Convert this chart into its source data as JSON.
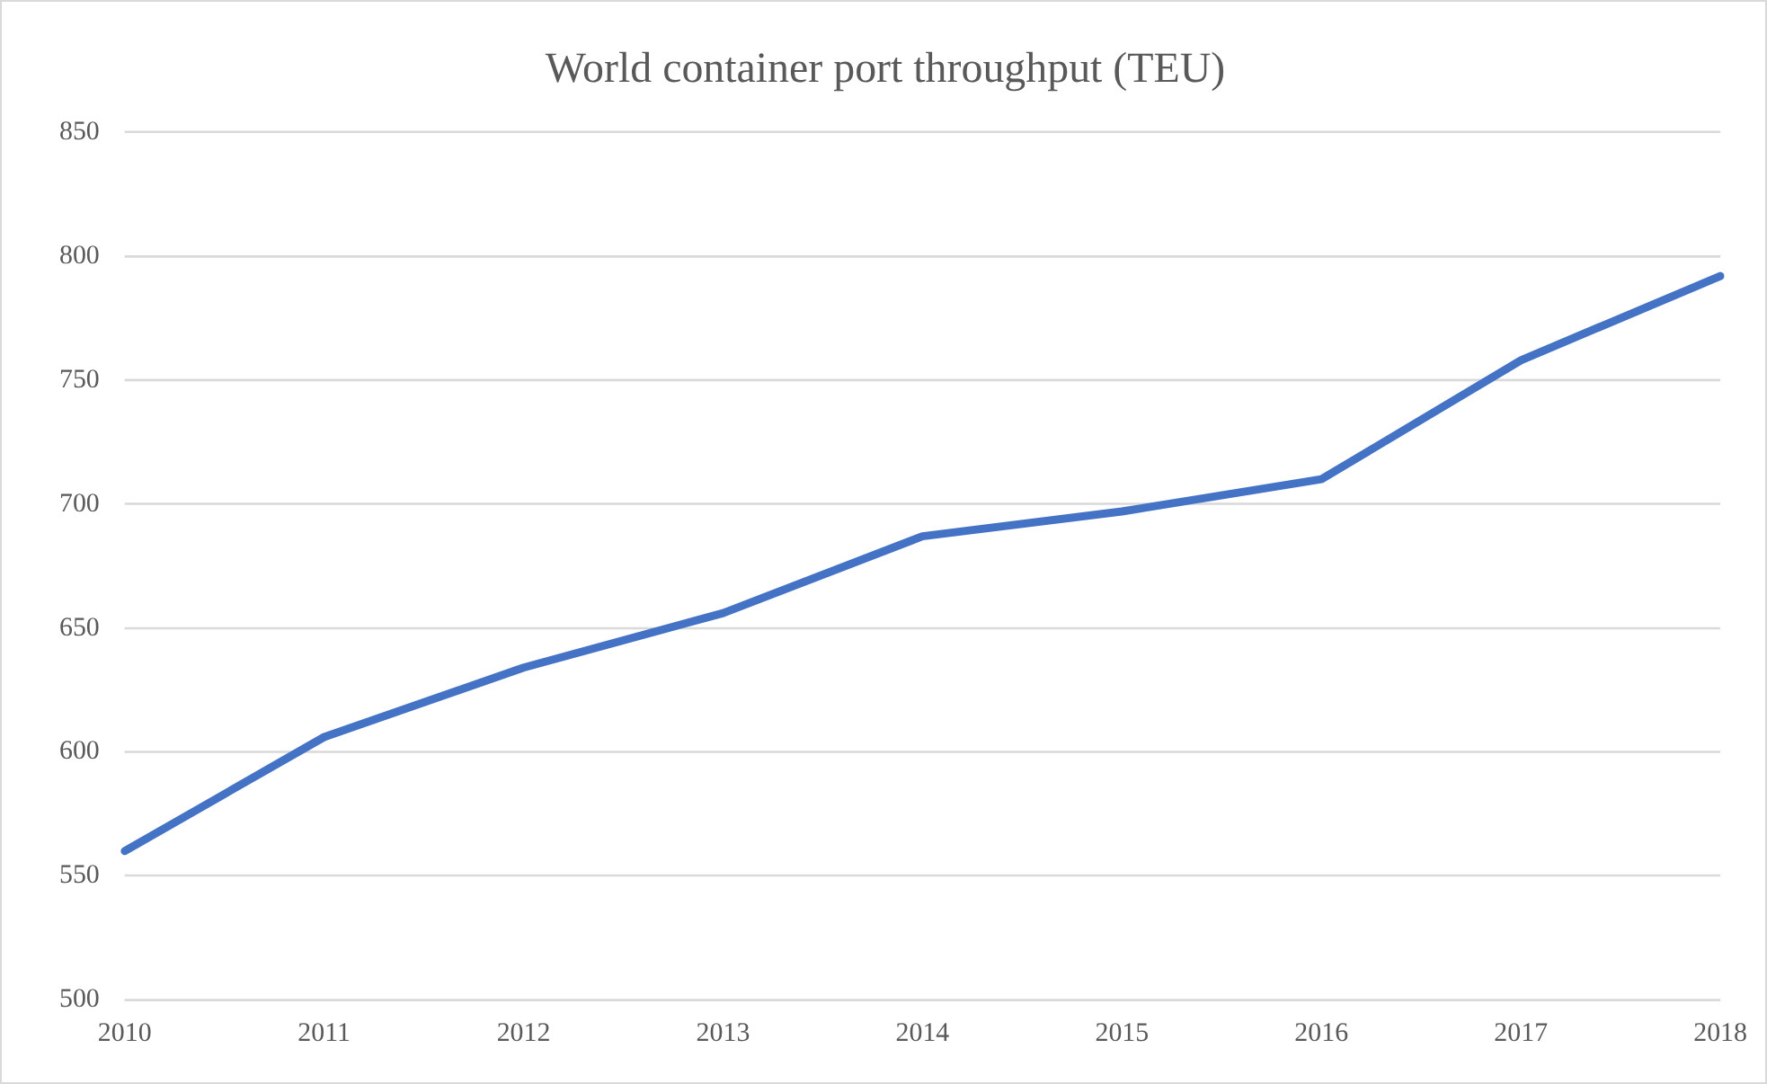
{
  "chart_data": {
    "type": "line",
    "title": "World container port throughput (TEU)",
    "categories": [
      "2010",
      "2011",
      "2012",
      "2013",
      "2014",
      "2015",
      "2016",
      "2017",
      "2018"
    ],
    "series": [
      {
        "color": "#4472c4",
        "values": [
          560,
          606,
          634,
          656,
          687,
          697,
          710,
          758,
          792
        ]
      }
    ],
    "ylim": [
      500,
      850
    ],
    "yticks": [
      500,
      550,
      600,
      650,
      700,
      750,
      800,
      850
    ],
    "grid": "y",
    "legend": false,
    "marker": "none",
    "line_style": "solid"
  }
}
